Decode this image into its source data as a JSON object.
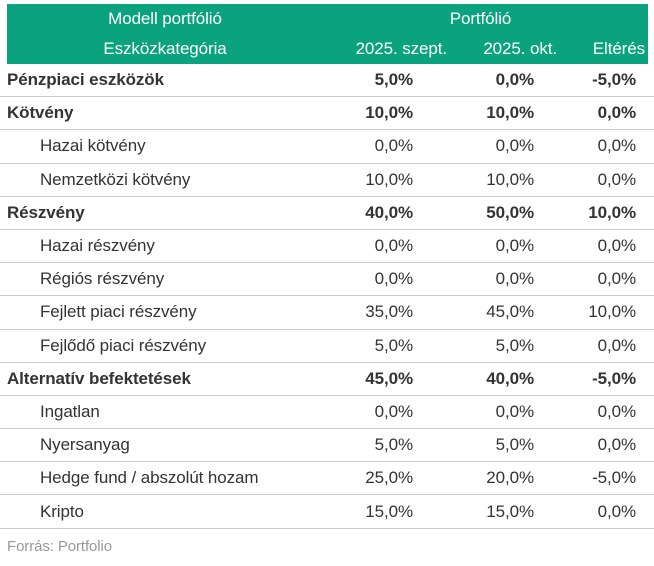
{
  "table": {
    "header": {
      "group_left": "Modell portfólió",
      "group_right": "Portfólió",
      "col_category": "Eszközkategória",
      "col_sept": "2025. szept.",
      "col_okt": "2025. okt.",
      "col_diff": "Eltérés"
    },
    "rows": [
      {
        "label": "Pénzpiaci eszközök",
        "sept": "5,0%",
        "okt": "0,0%",
        "diff": "-5,0%"
      },
      {
        "label": "Kötvény",
        "sept": "10,0%",
        "okt": "10,0%",
        "diff": "0,0%"
      },
      {
        "label": "Hazai kötvény",
        "sept": "0,0%",
        "okt": "0,0%",
        "diff": "0,0%"
      },
      {
        "label": "Nemzetközi kötvény",
        "sept": "10,0%",
        "okt": "10,0%",
        "diff": "0,0%"
      },
      {
        "label": "Részvény",
        "sept": "40,0%",
        "okt": "50,0%",
        "diff": "10,0%"
      },
      {
        "label": "Hazai részvény",
        "sept": "0,0%",
        "okt": "0,0%",
        "diff": "0,0%"
      },
      {
        "label": "Régiós részvény",
        "sept": "0,0%",
        "okt": "0,0%",
        "diff": "0,0%"
      },
      {
        "label": "Fejlett piaci részvény",
        "sept": "35,0%",
        "okt": "45,0%",
        "diff": "10,0%"
      },
      {
        "label": "Fejlődő piaci részvény",
        "sept": "5,0%",
        "okt": "5,0%",
        "diff": "0,0%"
      },
      {
        "label": "Alternatív befektetések",
        "sept": "45,0%",
        "okt": "40,0%",
        "diff": "-5,0%"
      },
      {
        "label": "Ingatlan",
        "sept": "0,0%",
        "okt": "0,0%",
        "diff": "0,0%"
      },
      {
        "label": "Nyersanyag",
        "sept": "5,0%",
        "okt": "5,0%",
        "diff": "0,0%"
      },
      {
        "label": "Hedge fund / abszolút hozam",
        "sept": "25,0%",
        "okt": "20,0%",
        "diff": "-5,0%"
      },
      {
        "label": "Kripto",
        "sept": "15,0%",
        "okt": "15,0%",
        "diff": "0,0%"
      }
    ],
    "footer": "Forrás: Portfolio"
  },
  "colors": {
    "header_bg": "#0aa37e",
    "header_text": "#ffffff",
    "body_text": "#333333",
    "divider": "#cccccc",
    "source_text": "#999999"
  },
  "chart_data": {
    "type": "table",
    "title": "Modell portfólió / Portfólió eszközallokáció",
    "columns": [
      "Eszközkategória",
      "2025. szept.",
      "2025. okt.",
      "Eltérés"
    ],
    "categories": [
      "Pénzpiaci eszközök",
      "Kötvény",
      "Hazai kötvény",
      "Nemzetközi kötvény",
      "Részvény",
      "Hazai részvény",
      "Régiós részvény",
      "Fejlett piaci részvény",
      "Fejlődő piaci részvény",
      "Alternatív befektetések",
      "Ingatlan",
      "Nyersanyag",
      "Hedge fund / abszolút hozam",
      "Kripto"
    ],
    "series": [
      {
        "name": "2025. szept.",
        "values": [
          5.0,
          10.0,
          0.0,
          10.0,
          40.0,
          0.0,
          0.0,
          35.0,
          5.0,
          45.0,
          0.0,
          5.0,
          25.0,
          15.0
        ]
      },
      {
        "name": "2025. okt.",
        "values": [
          0.0,
          10.0,
          0.0,
          10.0,
          50.0,
          0.0,
          0.0,
          45.0,
          5.0,
          40.0,
          0.0,
          5.0,
          20.0,
          15.0
        ]
      },
      {
        "name": "Eltérés",
        "values": [
          -5.0,
          0.0,
          0.0,
          0.0,
          10.0,
          0.0,
          0.0,
          10.0,
          0.0,
          -5.0,
          0.0,
          0.0,
          -5.0,
          0.0
        ]
      }
    ],
    "unit": "%",
    "bold_category_rows": [
      0,
      1,
      4,
      9
    ],
    "source": "Forrás: Portfolio"
  }
}
